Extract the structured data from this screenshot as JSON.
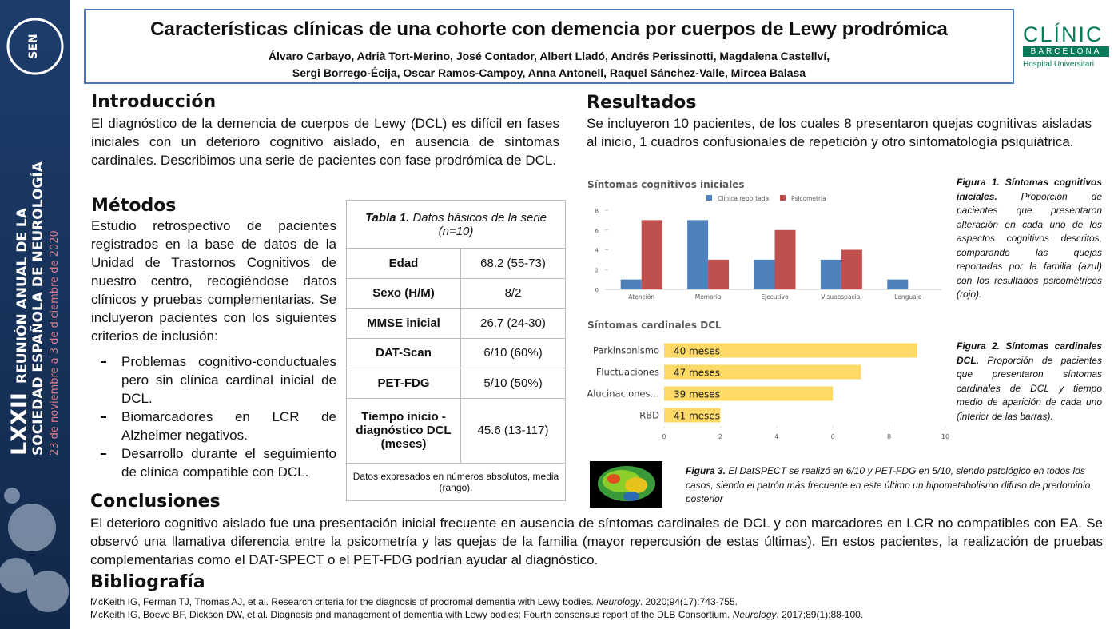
{
  "banner": {
    "logo": "SEN",
    "edition": "LXXII",
    "line1": "REUNIÓN ANUAL DE LA",
    "line2": "SOCIEDAD ESPAÑOLA DE NEUROLOGÍA",
    "dates": "23 de noviembre a 3 de diciembre de 2020"
  },
  "header": {
    "title": "Características clínicas de una cohorte con demencia por cuerpos de Lewy prodrómica",
    "authors": [
      "Álvaro Carbayo, Adrià Tort-Merino, José Contador, Albert Lladó, Andrés Perissinotti, Magdalena Castellví,",
      "Sergi Borrego-Écija, Oscar Ramos-Campoy, Anna Antonell, Raquel Sánchez-Valle, Mircea Balasa"
    ]
  },
  "logo": {
    "name": "CLÍNIC",
    "city": "BARCELONA",
    "hospital": "Hospital Universitari"
  },
  "intro": {
    "heading": "Introducción",
    "text": "El diagnóstico de la demencia de cuerpos de Lewy (DCL) es difícil en fases iniciales con un deterioro cognitivo aislado, en ausencia de síntomas cardinales. Describimos una serie de pacientes con fase prodrómica de DCL."
  },
  "methods": {
    "heading": "Métodos",
    "text": "Estudio retrospectivo de pacientes registrados en la base de datos de la Unidad de Trastornos Cognitivos de nuestro centro, recogiéndose datos clínicos y pruebas complementarias. Se incluyeron pacientes con los siguientes criterios de inclusión:",
    "items": [
      "Problemas cognitivo-conductuales pero sin clínica cardinal inicial de DCL.",
      "Biomarcadores en LCR de Alzheimer negativos.",
      "Desarrollo durante el seguimiento de clínica compatible con DCL."
    ]
  },
  "table": {
    "label": "Tabla 1.",
    "title": "Datos básicos de la serie (n=10)",
    "rows": [
      [
        "Edad",
        "68.2 (55-73)"
      ],
      [
        "Sexo (H/M)",
        "8/2"
      ],
      [
        "MMSE inicial",
        "26.7 (24-30)"
      ],
      [
        "DAT-Scan",
        "6/10 (60%)"
      ],
      [
        "PET-FDG",
        "5/10 (50%)"
      ],
      [
        "Tiempo inicio - diagnóstico DCL (meses)",
        "45.6 (13-117)"
      ]
    ],
    "note": "Datos expresados en números absolutos, media (rango)."
  },
  "results": {
    "heading": "Resultados",
    "text": "Se incluyeron 10 pacientes, de los cuales 8 presentaron quejas cognitivas aisladas al inicio, 1 cuadros confusionales de repetición y otro sintomatología psiquiátrica."
  },
  "chart_data": [
    {
      "type": "bar",
      "title": "Síntomas cognitivos iniciales",
      "categories": [
        "Atención",
        "Memoria",
        "Ejecutivo",
        "Visuoespacial",
        "Lenguaje"
      ],
      "series": [
        {
          "name": "Clínica reportada",
          "color": "#4f81bd",
          "values": [
            1,
            7,
            3,
            3,
            1
          ]
        },
        {
          "name": "Psicometría",
          "color": "#c0504d",
          "values": [
            7,
            3,
            6,
            4,
            0
          ]
        }
      ],
      "ylim": [
        0,
        8
      ],
      "yticks": [
        0,
        2,
        4,
        6,
        8
      ],
      "grid": false
    },
    {
      "type": "barh",
      "title": "Síntomas cardinales DCL",
      "categories": [
        "Parkinsonismo",
        "Fluctuaciones",
        "Alucinaciones…",
        "RBD"
      ],
      "values": [
        9,
        7,
        6,
        2
      ],
      "bar_labels": [
        "40 meses",
        "47 meses",
        "39 meses",
        "41 meses"
      ],
      "color": "#ffd966",
      "xlim": [
        0,
        10
      ],
      "xticks": [
        0,
        2,
        4,
        6,
        8,
        10
      ],
      "grid": false
    }
  ],
  "figures": [
    {
      "label": "Figura 1. Síntomas cognitivos iniciales.",
      "text": "Proporción de pacientes que presentaron alteración en cada uno de los aspectos cognitivos descritos, comparando las quejas reportadas por la familia (azul) con los resultados psicométricos (rojo)."
    },
    {
      "label": "Figura 2. Síntomas cardinales DCL.",
      "text": "Proporción de pacientes que presentaron síntomas cardinales de DCL y tiempo medio de aparición de cada uno (interior de las barras)."
    },
    {
      "label": "Figura 3.",
      "text": "El DatSPECT se realizó en 6/10 y PET-FDG en 5/10, siendo patológico en todos los casos, siendo el patrón más frecuente en este último un hipometabolismo difuso de predominio posterior"
    }
  ],
  "conclusions": {
    "heading": "Conclusiones",
    "text": "El deterioro cognitivo aislado fue una presentación inicial frecuente en ausencia de síntomas cardinales de DCL y con marcadores en LCR no compatibles con EA. Se observó una llamativa diferencia entre la psicometría y las quejas de la familia (mayor repercusión de estas últimas). En estos pacientes, la realización de pruebas complementarias como el DAT-SPECT o el PET-FDG podrían ayudar al diagnóstico."
  },
  "bibliography": {
    "heading": "Bibliografía",
    "refs": [
      [
        "McKeith IG, Ferman TJ, Thomas AJ, et al. Research criteria for the diagnosis of prodromal dementia with Lewy bodies. ",
        "Neurology",
        ". 2020;94(17):743-755."
      ],
      [
        "McKeith IG, Boeve BF, Dickson DW, et al. Diagnosis and management of dementia with Lewy bodies: Fourth consensus report of the DLB Consortium. ",
        "Neurology",
        ". 2017;89(1):88-100."
      ]
    ]
  }
}
